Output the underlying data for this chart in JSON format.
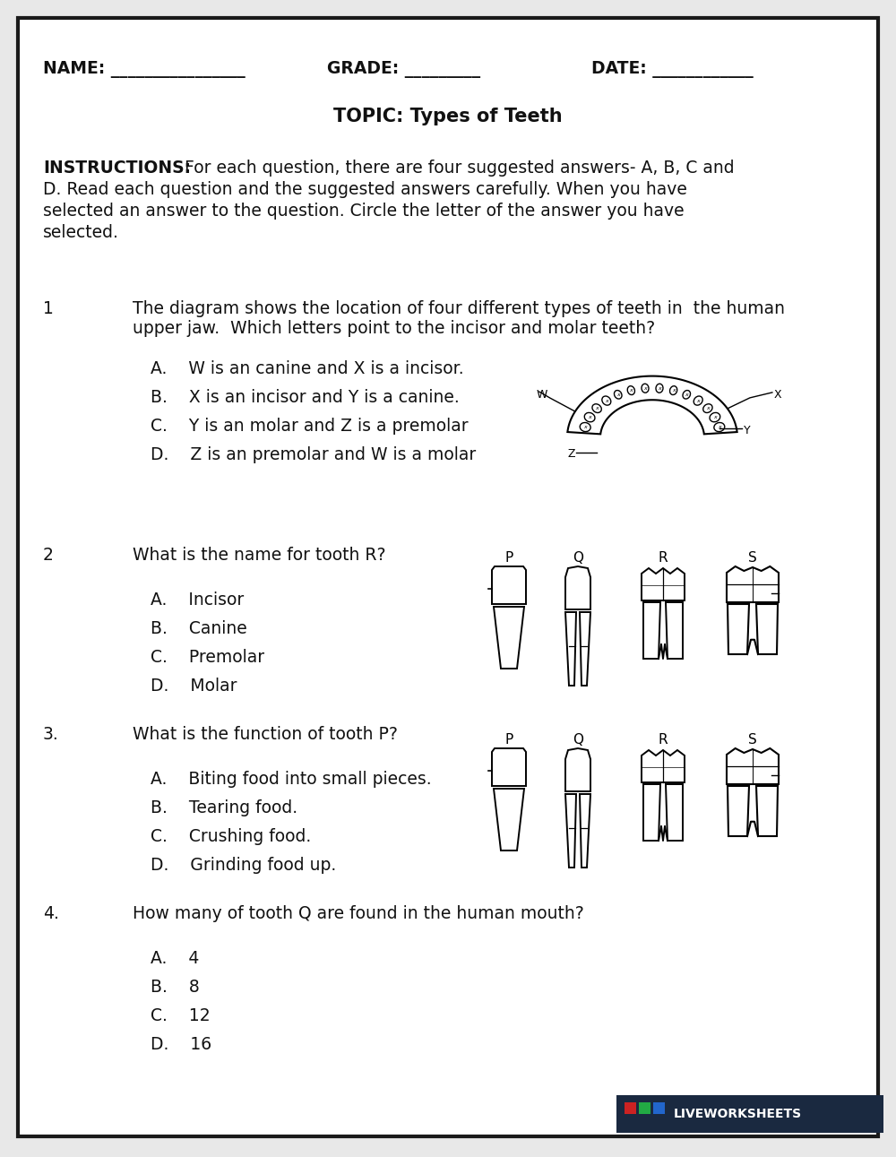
{
  "bg_color": "#e8e8e8",
  "border_color": "#1a1a1a",
  "page_bg": "#ffffff",
  "font_color": "#111111",
  "header_name": "NAME: ________________",
  "header_grade": "GRADE: _________",
  "header_date": "DATE: ____________",
  "title": "TOPIC: Types of Teeth",
  "instructions_bold": "INSTRUCTIONS:",
  "instructions_rest": " For each question, there are four suggested answers- A, B, C and\nD. Read each question and the suggested answers carefully. When you have\nselected an answer to the question. Circle the letter of the answer you have\nselected.",
  "q1_num": "1",
  "q1_text": "The diagram shows the location of four different types of teeth in  the human\nupper jaw.  Which letters point to the incisor and molar teeth?",
  "q1_answers": [
    "A.    W is an canine and X is a incisor.",
    "B.    X is an incisor and Y is a canine.",
    "C.    Y is an molar and Z is a premolar",
    "D.    Z is an premolar and W is a molar"
  ],
  "q2_num": "2",
  "q2_text": "What is the name for tooth R?",
  "q2_answers": [
    "A.    Incisor",
    "B.    Canine",
    "C.    Premolar",
    "D.    Molar"
  ],
  "q3_num": "3.",
  "q3_text": "What is the function of tooth P?",
  "q3_answers": [
    "A.    Biting food into small pieces.",
    "B.    Tearing food.",
    "C.    Crushing food.",
    "D.    Grinding food up."
  ],
  "q4_num": "4.",
  "q4_text": "How many of tooth Q are found in the human mouth?",
  "q4_answers": [
    "A.    4",
    "B.    8",
    "C.    12",
    "D.    16"
  ],
  "teeth_labels": [
    "P",
    "Q",
    "R",
    "S"
  ],
  "footer_bg": "#1a2940",
  "footer_text": "LIVEWORKSHEETS",
  "footer_sq_colors": [
    "#cc2222",
    "#22aa44",
    "#2266cc"
  ]
}
